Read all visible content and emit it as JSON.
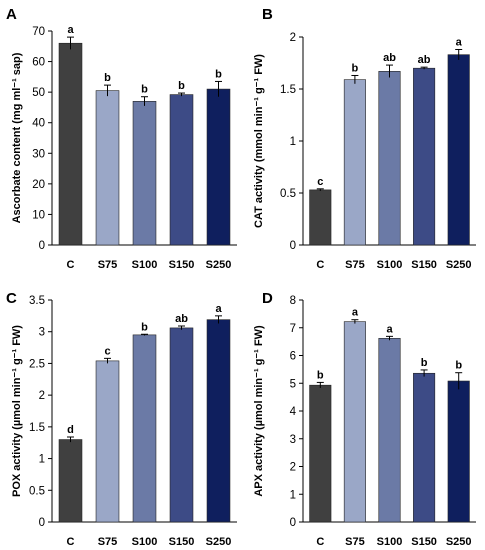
{
  "chart_data": [
    {
      "panel": "A",
      "type": "bar",
      "categories": [
        "C",
        "S75",
        "S100",
        "S150",
        "S250"
      ],
      "values": [
        66,
        50.5,
        47,
        49.2,
        51
      ],
      "errors": [
        2.0,
        1.8,
        1.5,
        0.5,
        2.5
      ],
      "significance": [
        "a",
        "b",
        "b",
        "b",
        "b"
      ],
      "colors": [
        "#404040",
        "#9aa7c7",
        "#6b7aa6",
        "#3d4b86",
        "#0f1f5e"
      ],
      "ylabel": "Ascorbate content (mg ml⁻¹ sap)",
      "ylim": [
        0,
        70
      ],
      "yticks": [
        0,
        10,
        20,
        30,
        40,
        50,
        60,
        70
      ],
      "ytick_labels": [
        "0",
        "10",
        "20",
        "30",
        "40",
        "50",
        "60",
        "70"
      ],
      "grid": false
    },
    {
      "panel": "B",
      "type": "bar",
      "categories": [
        "C",
        "S75",
        "S100",
        "S150",
        "S250"
      ],
      "values": [
        0.53,
        1.59,
        1.67,
        1.7,
        1.83
      ],
      "errors": [
        0.01,
        0.04,
        0.06,
        0.01,
        0.05
      ],
      "significance": [
        "c",
        "b",
        "ab",
        "ab",
        "a"
      ],
      "colors": [
        "#404040",
        "#9aa7c7",
        "#6b7aa6",
        "#3d4b86",
        "#0f1f5e"
      ],
      "ylabel": "CAT activity (mmol min⁻¹ g⁻¹ FW)",
      "ylim": [
        0,
        2
      ],
      "yticks": [
        0,
        0.5,
        1,
        1.5,
        2
      ],
      "ytick_labels": [
        "0",
        "0.5",
        "1",
        "1.5",
        "2"
      ],
      "grid": false
    },
    {
      "panel": "C",
      "type": "bar",
      "categories": [
        "C",
        "S75",
        "S100",
        "S150",
        "S250"
      ],
      "values": [
        1.3,
        2.54,
        2.95,
        3.06,
        3.19
      ],
      "errors": [
        0.04,
        0.04,
        0.01,
        0.03,
        0.06
      ],
      "significance": [
        "d",
        "c",
        "b",
        "ab",
        "a"
      ],
      "colors": [
        "#404040",
        "#9aa7c7",
        "#6b7aa6",
        "#3d4b86",
        "#0f1f5e"
      ],
      "ylabel": "POX activity (µmol min⁻¹ g⁻¹ FW)",
      "ylim": [
        0,
        3.5
      ],
      "yticks": [
        0,
        0.5,
        1,
        1.5,
        2,
        2.5,
        3,
        3.5
      ],
      "ytick_labels": [
        "0",
        "0.5",
        "1",
        "1.5",
        "2",
        "2.5",
        "3",
        "3.5"
      ],
      "grid": false
    },
    {
      "panel": "D",
      "type": "bar",
      "categories": [
        "C",
        "S75",
        "S100",
        "S150",
        "S250"
      ],
      "values": [
        4.93,
        7.22,
        6.62,
        5.36,
        5.08
      ],
      "errors": [
        0.1,
        0.07,
        0.07,
        0.12,
        0.3
      ],
      "significance": [
        "b",
        "a",
        "a",
        "b",
        "b"
      ],
      "colors": [
        "#404040",
        "#9aa7c7",
        "#6b7aa6",
        "#3d4b86",
        "#0f1f5e"
      ],
      "ylabel": "APX activity (µmol min⁻¹ g⁻¹ FW)",
      "ylim": [
        0,
        8
      ],
      "yticks": [
        0,
        1,
        2,
        3,
        4,
        5,
        6,
        7,
        8
      ],
      "ytick_labels": [
        "0",
        "1",
        "2",
        "3",
        "4",
        "5",
        "6",
        "7",
        "8"
      ],
      "grid": false
    }
  ]
}
